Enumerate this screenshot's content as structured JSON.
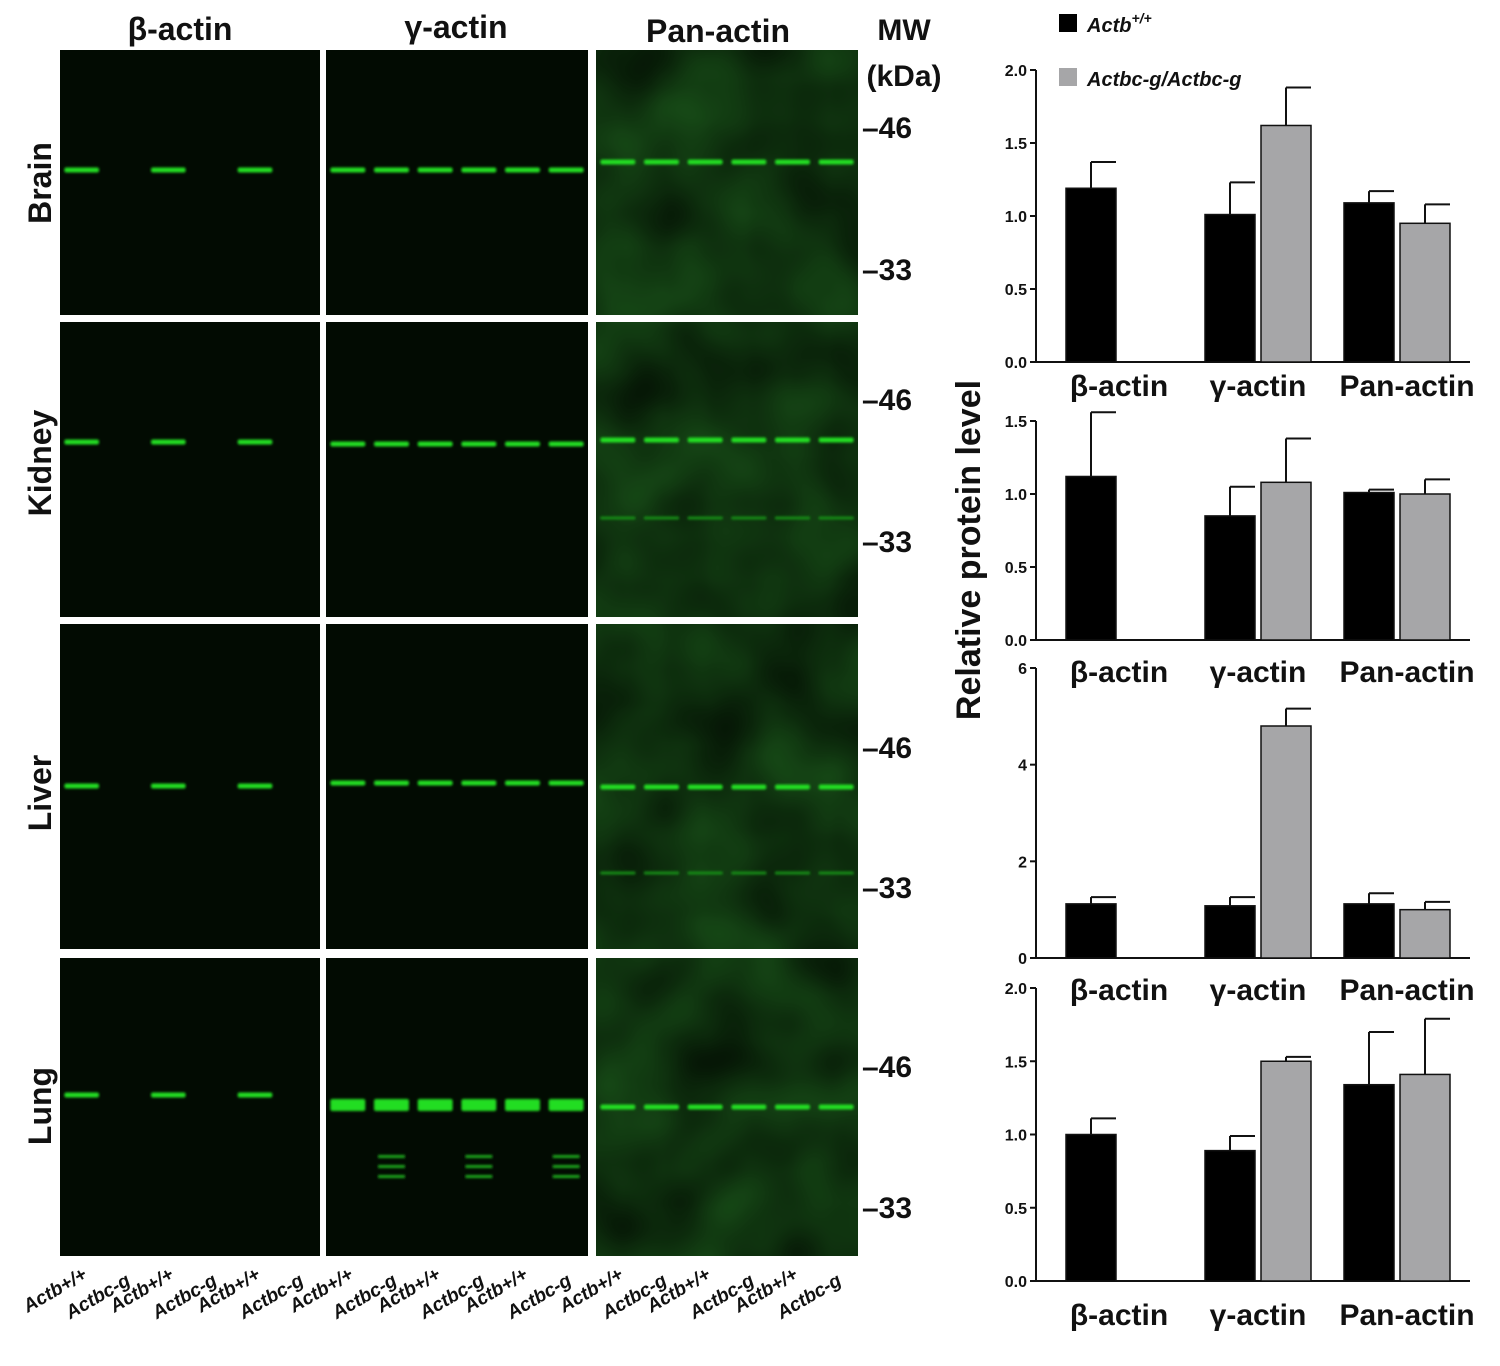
{
  "figure": {
    "column_titles": [
      "β-actin",
      "γ-actin",
      "Pan-actin"
    ],
    "mw_title_line1": "MW",
    "mw_title_line2": "(kDa)",
    "mw_marker_labels": [
      "–46",
      "–33"
    ],
    "tissues": [
      "Brain",
      "Kidney",
      "Liver",
      "Lung"
    ],
    "lane_labels": [
      "Actb+/+",
      "Actbc-g",
      "Actb+/+",
      "Actbc-g",
      "Actb+/+",
      "Actbc-g"
    ],
    "colors": {
      "blot_background": "#020b02",
      "band": "#22dd22",
      "wildtype_bar": "#000000",
      "mutant_bar": "#a6a6a8"
    }
  },
  "legend": {
    "entries": [
      {
        "label": "Actb",
        "superscript": "+/+",
        "color": "#000000"
      },
      {
        "label": "Actbc-g/Actbc-g",
        "superscript": "",
        "color": "#a6a6a8"
      }
    ]
  },
  "chart_data": [
    {
      "type": "bar",
      "panel": "Brain",
      "categories": [
        "β-actin",
        "γ-actin",
        "Pan-actin"
      ],
      "ylabel": "Relative protein level",
      "ylim": [
        0,
        2.0
      ],
      "yticks": [
        "0.0",
        "0.5",
        "1.0",
        "1.5",
        "2.0"
      ],
      "series": [
        {
          "name": "Actb+/+",
          "values": [
            1.19,
            1.01,
            1.09
          ],
          "errors": [
            0.18,
            0.22,
            0.08
          ]
        },
        {
          "name": "Actbc-g/Actbc-g",
          "values": [
            0,
            1.62,
            0.95
          ],
          "errors": [
            0,
            0.26,
            0.13
          ]
        }
      ]
    },
    {
      "type": "bar",
      "panel": "Kidney",
      "categories": [
        "β-actin",
        "γ-actin",
        "Pan-actin"
      ],
      "ylabel": "Relative protein level",
      "ylim": [
        0,
        1.5
      ],
      "yticks": [
        "0.0",
        "0.5",
        "1.0",
        "1.5"
      ],
      "series": [
        {
          "name": "Actb+/+",
          "values": [
            1.12,
            0.85,
            1.01
          ],
          "errors": [
            0.44,
            0.2,
            0.02
          ]
        },
        {
          "name": "Actbc-g/Actbc-g",
          "values": [
            0,
            1.08,
            1.0
          ],
          "errors": [
            0,
            0.3,
            0.1
          ]
        }
      ]
    },
    {
      "type": "bar",
      "panel": "Liver",
      "categories": [
        "β-actin",
        "γ-actin",
        "Pan-actin"
      ],
      "ylabel": "Relative protein level",
      "ylim": [
        0,
        6
      ],
      "yticks": [
        "0",
        "2",
        "4",
        "6"
      ],
      "series": [
        {
          "name": "Actb+/+",
          "values": [
            1.12,
            1.08,
            1.12
          ],
          "errors": [
            0.14,
            0.18,
            0.22
          ]
        },
        {
          "name": "Actbc-g/Actbc-g",
          "values": [
            0,
            4.8,
            1.0
          ],
          "errors": [
            0,
            0.36,
            0.16
          ]
        }
      ]
    },
    {
      "type": "bar",
      "panel": "Lung",
      "categories": [
        "β-actin",
        "γ-actin",
        "Pan-actin"
      ],
      "ylabel": "Relative protein level",
      "ylim": [
        0,
        2.0
      ],
      "yticks": [
        "0.0",
        "0.5",
        "1.0",
        "1.5",
        "2.0"
      ],
      "series": [
        {
          "name": "Actb+/+",
          "values": [
            1.0,
            0.89,
            1.34
          ],
          "errors": [
            0.11,
            0.1,
            0.36
          ]
        },
        {
          "name": "Actbc-g/Actbc-g",
          "values": [
            0,
            1.5,
            1.41
          ],
          "errors": [
            0,
            0.03,
            0.38
          ]
        }
      ]
    }
  ]
}
